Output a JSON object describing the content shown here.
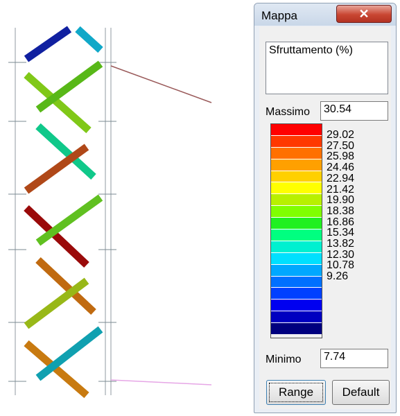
{
  "panel": {
    "title": "Mappa",
    "close_glyph": "✕",
    "description": "Sfruttamento (%)",
    "max_label": "Massimo",
    "max_value": "30.54",
    "min_label": "Minimo",
    "min_value": "7.74",
    "range_button": "Range",
    "default_button": "Default",
    "tick_labels": [
      "29.02",
      "27.50",
      "25.98",
      "24.46",
      "22.94",
      "21.42",
      "19.90",
      "18.38",
      "16.86",
      "15.34",
      "13.82",
      "12.30",
      "10.78",
      "9.26"
    ],
    "colors": [
      "#ff0000",
      "#ff3800",
      "#ff7000",
      "#ffa000",
      "#ffd000",
      "#ffff00",
      "#b8f000",
      "#80ff00",
      "#20f020",
      "#00ff80",
      "#00f0d0",
      "#00e0ff",
      "#00a8ff",
      "#0070ff",
      "#0040ff",
      "#0000f0",
      "#0000c0",
      "#00007f"
    ]
  }
}
